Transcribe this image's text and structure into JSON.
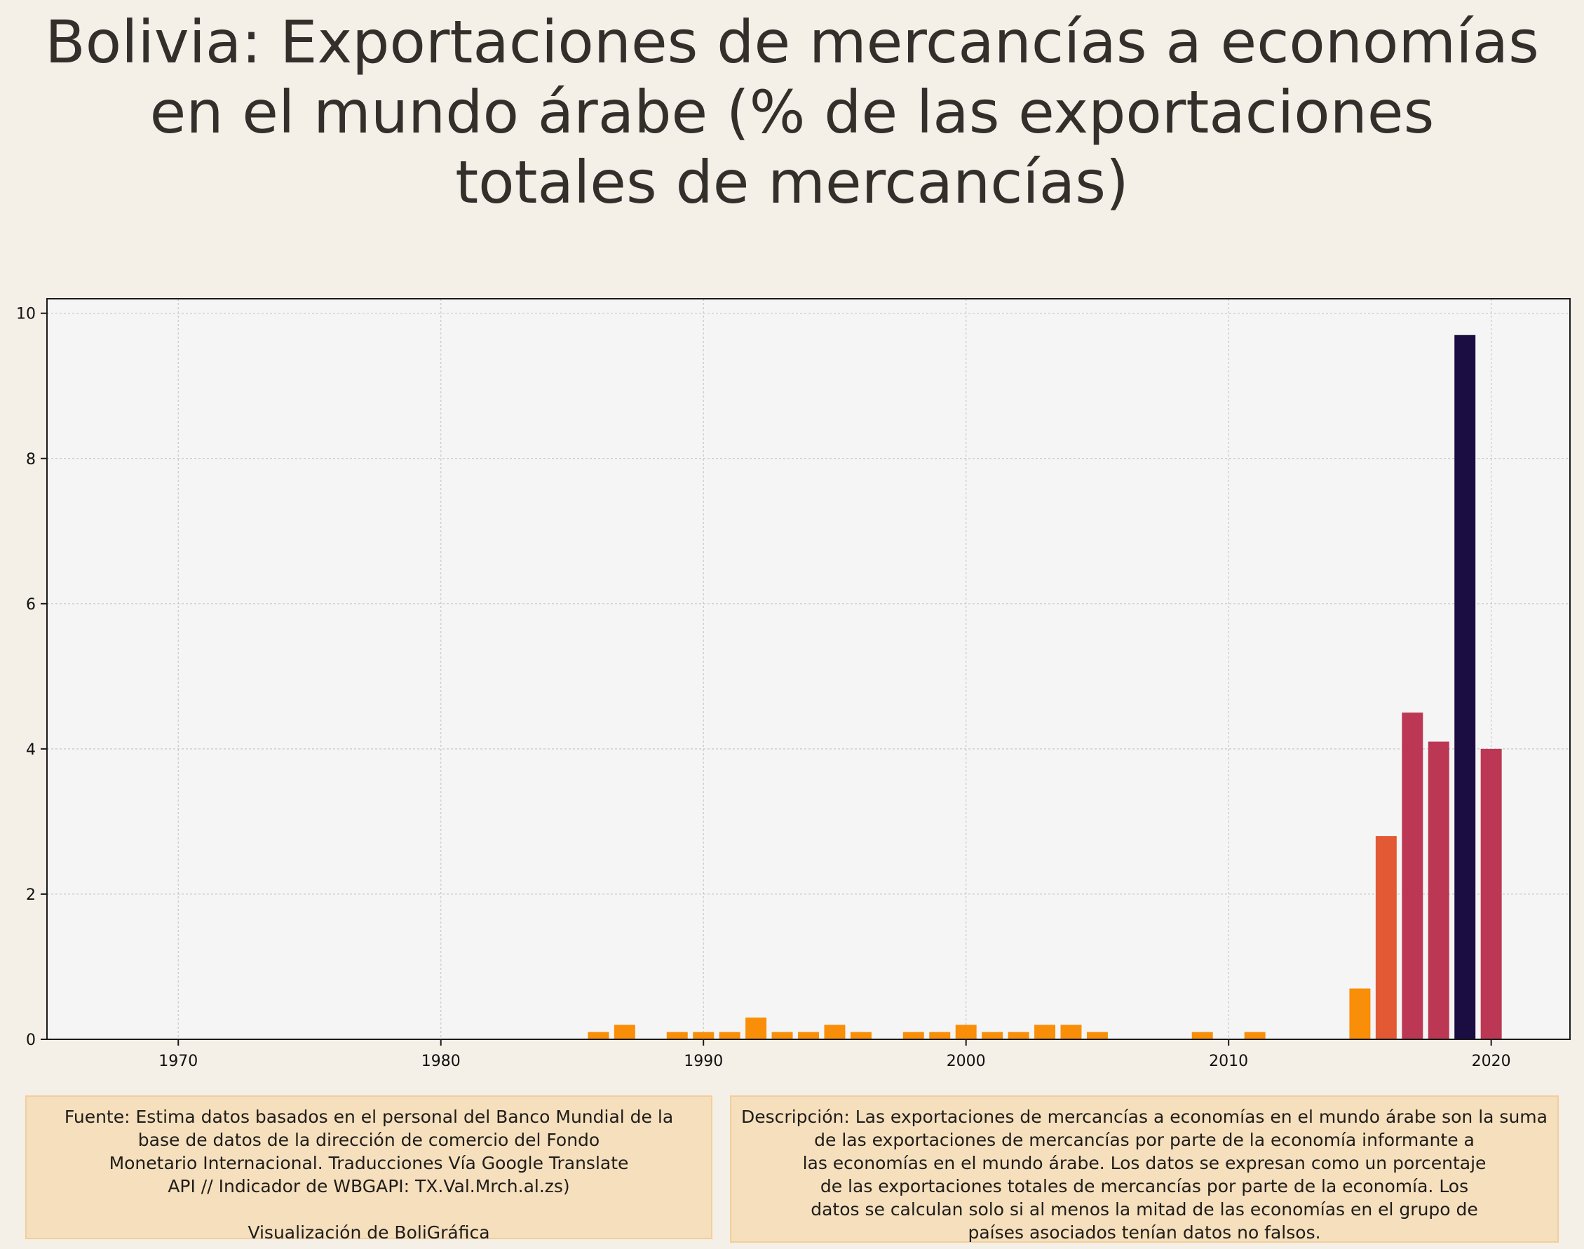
{
  "title_lines": [
    "Bolivia:  Exportaciones de mercancías a economías",
    "en el mundo árabe (% de las exportaciones",
    "totales de mercancías)"
  ],
  "chart_data": {
    "type": "bar",
    "x": [
      1986,
      1987,
      1989,
      1990,
      1991,
      1992,
      1993,
      1994,
      1995,
      1996,
      1998,
      1999,
      2000,
      2001,
      2002,
      2003,
      2004,
      2005,
      2009,
      2011,
      2015,
      2016,
      2017,
      2018,
      2019,
      2020
    ],
    "values": [
      0.1,
      0.2,
      0.1,
      0.1,
      0.1,
      0.3,
      0.1,
      0.1,
      0.2,
      0.1,
      0.1,
      0.1,
      0.2,
      0.1,
      0.1,
      0.2,
      0.2,
      0.1,
      0.1,
      0.1,
      0.7,
      2.8,
      4.5,
      4.1,
      9.7,
      4.0
    ],
    "xlim": [
      1965,
      2023
    ],
    "ylim": [
      0,
      10.2
    ],
    "x_ticks": [
      1970,
      1980,
      1990,
      2000,
      2010,
      2020
    ],
    "y_ticks": [
      0,
      2,
      4,
      6,
      8,
      10
    ],
    "grid": true,
    "colormap": [
      "#f98e09",
      "#e35933",
      "#bc3754",
      "#1b0c41"
    ]
  },
  "source": {
    "lines": [
      "Fuente: Estima datos basados en el personal del Banco Mundial de la",
      "base de datos de la dirección de comercio del Fondo",
      "Monetario Internacional. Traducciones Vía Google Translate",
      "API // Indicador de WBGAPI: TX.Val.Mrch.al.zs)"
    ],
    "credit": "Visualización de BoliGráfica"
  },
  "description": {
    "lines": [
      "Descripción: Las exportaciones de mercancías a economías en el mundo árabe son la suma",
      "de las exportaciones de mercancías por parte de la economía informante a",
      "las economías en el mundo árabe. Los datos se expresan como un porcentaje",
      "de las exportaciones totales de mercancías por parte de la economía. Los",
      "datos se calculan solo si al menos la mitad de las economías en el grupo de",
      "países asociados tenían datos no falsos."
    ]
  }
}
